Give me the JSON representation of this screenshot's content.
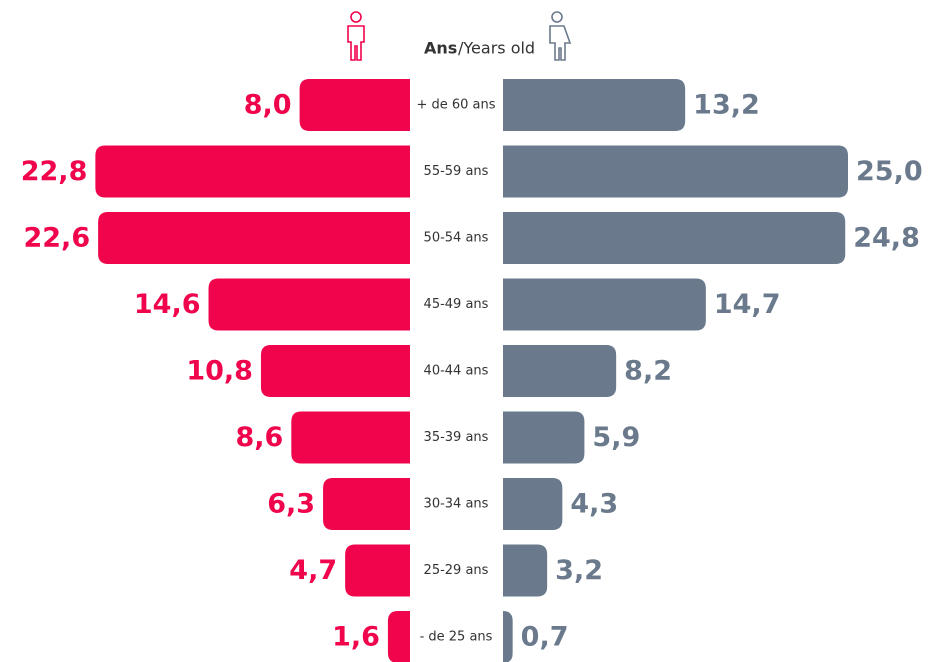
{
  "chart_data": {
    "type": "pyramid",
    "title_bold": "Ans",
    "title": "/Years old",
    "categories": [
      "+ de 60 ans",
      "55-59 ans",
      "50-54 ans",
      "45-49 ans",
      "40-44 ans",
      "35-39 ans",
      "30-34 ans",
      "25-29 ans",
      "- de 25 ans"
    ],
    "series": [
      {
        "color": "#f0044c",
        "values": [
          8.0,
          22.8,
          22.6,
          14.6,
          10.8,
          8.6,
          6.3,
          4.7,
          1.6
        ],
        "value_labels": [
          "8,0",
          "22,8",
          "22,6",
          "14,6",
          "10,8",
          "8,6",
          "6,3",
          "4,7",
          "1,6"
        ]
      },
      {
        "color": "#6a7a8c",
        "values": [
          13.2,
          25.0,
          24.8,
          14.7,
          8.2,
          5.9,
          4.3,
          3.2,
          0.7
        ],
        "value_labels": [
          "13,2",
          "25,0",
          "24,8",
          "14,7",
          "8,2",
          "5,9",
          "4,3",
          "3,2",
          "0,7"
        ]
      }
    ]
  }
}
